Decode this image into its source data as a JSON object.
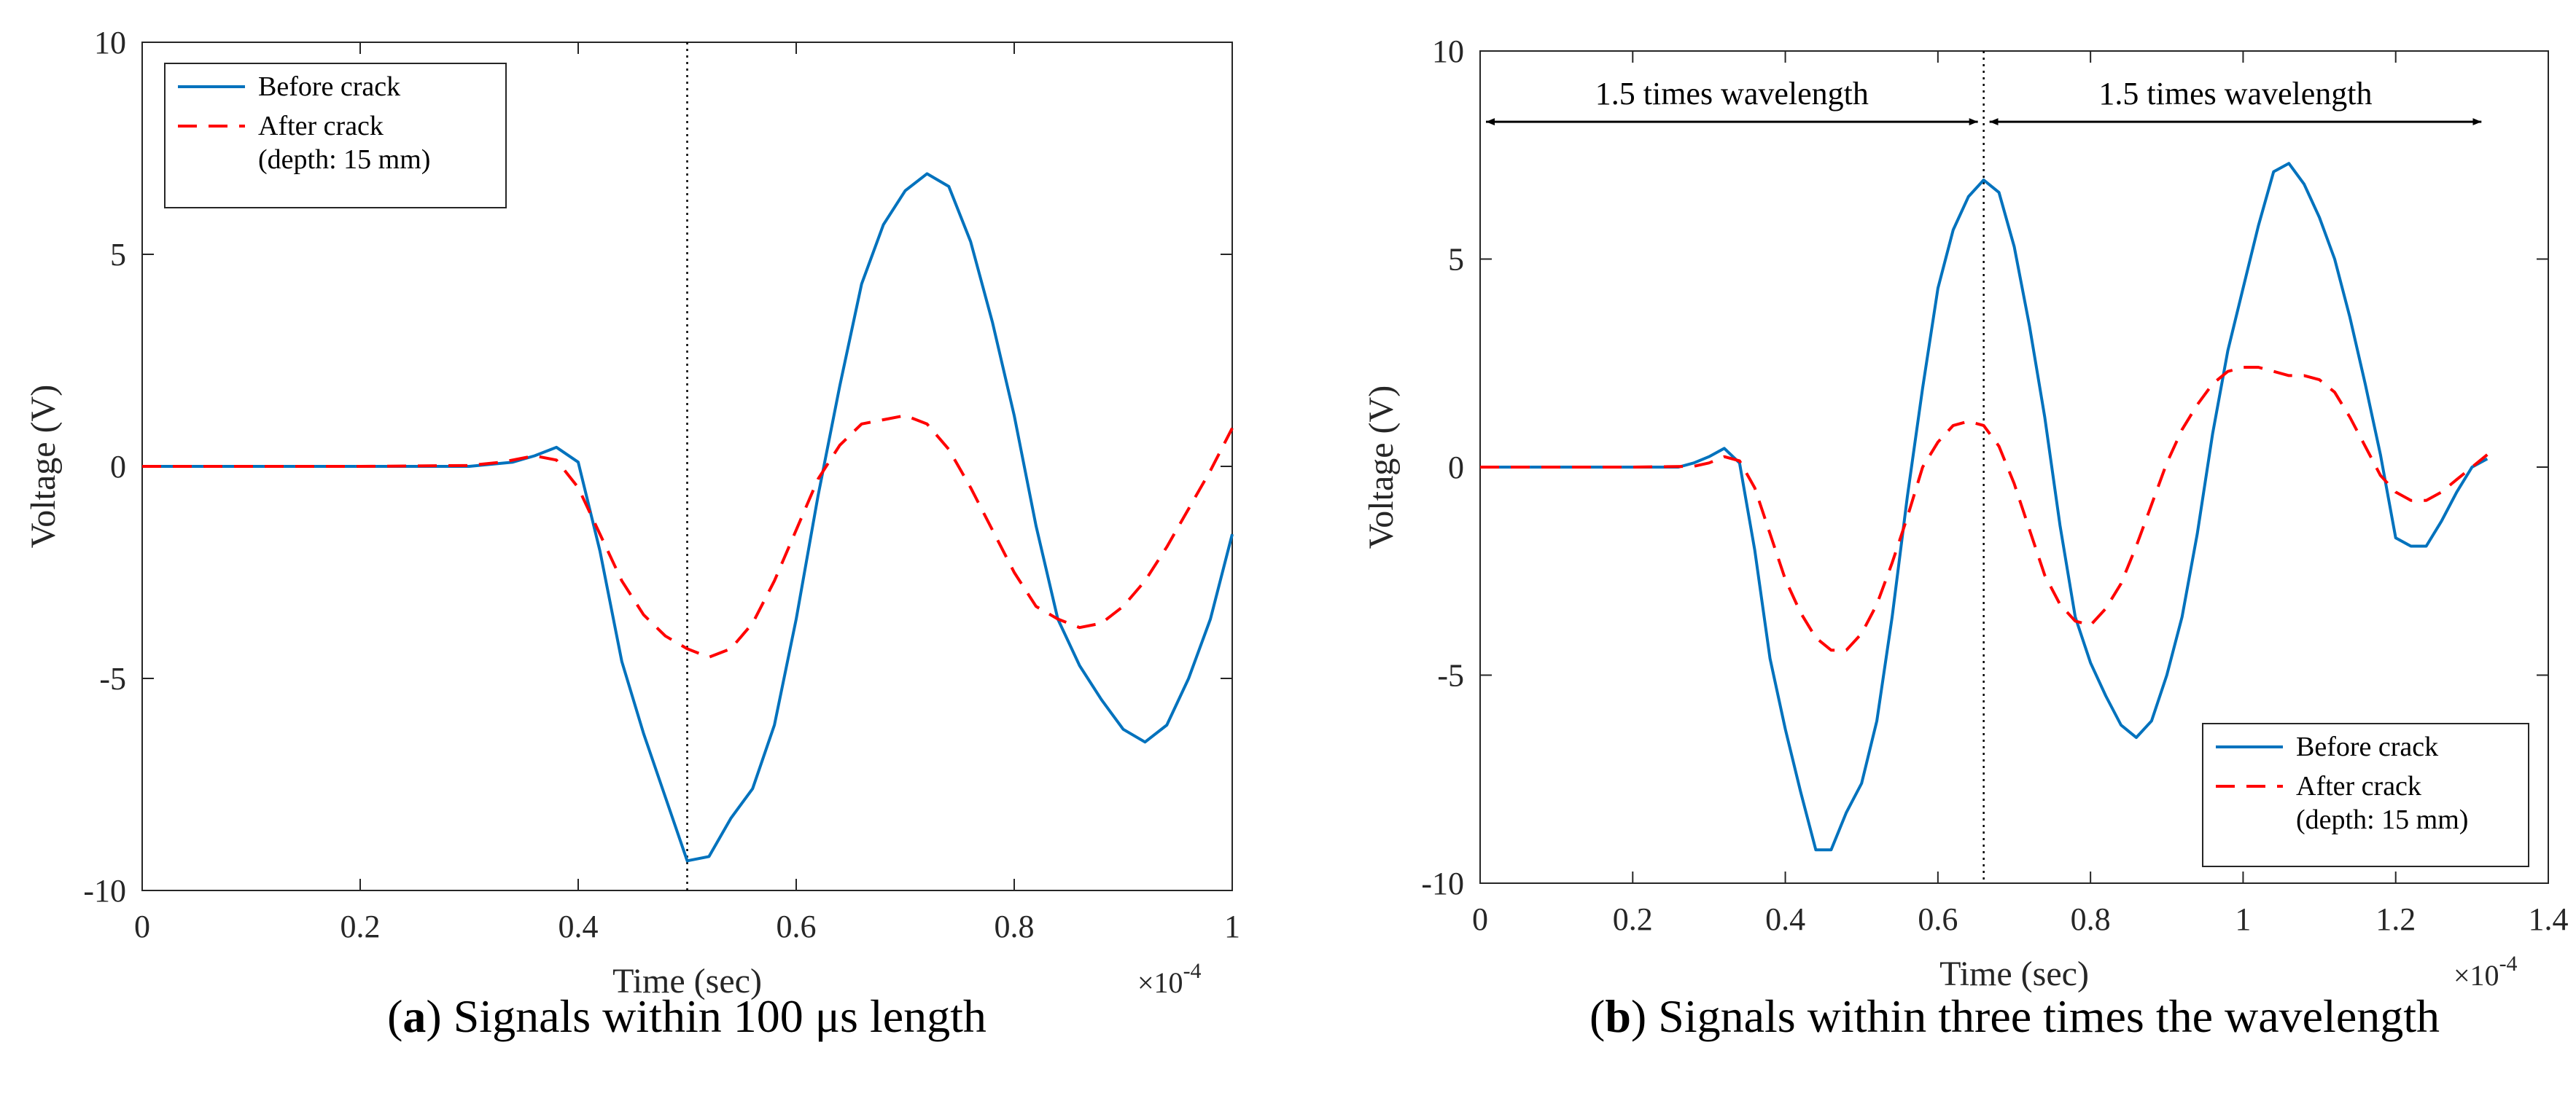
{
  "chart_data": [
    {
      "id": "a",
      "type": "line",
      "caption": {
        "letter": "a",
        "text": "Signals within 100 μs length"
      },
      "xlabel": "Time (sec)",
      "ylabel": "Voltage (V)",
      "x_exponent": "×10",
      "x_exponent_power": "-4",
      "xlim": [
        0,
        1.0
      ],
      "ylim": [
        -10,
        10
      ],
      "xticks": [
        0,
        0.2,
        0.4,
        0.6,
        0.8,
        1
      ],
      "xtick_labels": [
        "0",
        "0.2",
        "0.4",
        "0.6",
        "0.8",
        "1"
      ],
      "yticks": [
        -10,
        -5,
        0,
        5,
        10
      ],
      "ytick_labels": [
        "-10",
        "-5",
        "0",
        "5",
        "10"
      ],
      "grid": false,
      "legend_position": "top-left",
      "vlines": [
        0.5
      ],
      "arrows": [],
      "series": [
        {
          "name": "Before crack",
          "legend_lines": [
            "Before crack"
          ],
          "color": "#0072BD",
          "style": "solid",
          "x": [
            0,
            0.1,
            0.2,
            0.3,
            0.34,
            0.36,
            0.38,
            0.4,
            0.42,
            0.44,
            0.46,
            0.48,
            0.5,
            0.52,
            0.54,
            0.56,
            0.58,
            0.6,
            0.62,
            0.64,
            0.66,
            0.68,
            0.7,
            0.72,
            0.74,
            0.76,
            0.78,
            0.8,
            0.82,
            0.84,
            0.86,
            0.88,
            0.9,
            0.92,
            0.94,
            0.96,
            0.98,
            1.0
          ],
          "y": [
            0,
            0,
            0,
            0,
            0.1,
            0.25,
            0.45,
            0.1,
            -2.0,
            -4.6,
            -6.3,
            -7.8,
            -9.3,
            -9.2,
            -8.3,
            -7.6,
            -6.1,
            -3.6,
            -0.7,
            1.9,
            4.3,
            5.7,
            6.5,
            6.9,
            6.6,
            5.3,
            3.4,
            1.2,
            -1.4,
            -3.6,
            -4.7,
            -5.5,
            -6.2,
            -6.5,
            -6.1,
            -5.0,
            -3.6,
            -1.6
          ]
        },
        {
          "name": "After crack (depth: 15 mm)",
          "legend_lines": [
            "After crack",
            "(depth: 15 mm)"
          ],
          "color": "#FF0000",
          "style": "dashed",
          "x": [
            0,
            0.1,
            0.2,
            0.3,
            0.33,
            0.36,
            0.38,
            0.4,
            0.42,
            0.44,
            0.46,
            0.48,
            0.5,
            0.52,
            0.54,
            0.56,
            0.58,
            0.6,
            0.62,
            0.64,
            0.66,
            0.68,
            0.7,
            0.72,
            0.74,
            0.76,
            0.78,
            0.8,
            0.82,
            0.84,
            0.86,
            0.88,
            0.9,
            0.92,
            0.94,
            0.96,
            0.98,
            1.0
          ],
          "y": [
            0,
            0,
            0,
            0.02,
            0.1,
            0.25,
            0.15,
            -0.5,
            -1.6,
            -2.7,
            -3.5,
            -4.0,
            -4.3,
            -4.5,
            -4.3,
            -3.7,
            -2.7,
            -1.5,
            -0.3,
            0.5,
            1.0,
            1.1,
            1.2,
            1.0,
            0.4,
            -0.5,
            -1.5,
            -2.5,
            -3.3,
            -3.6,
            -3.8,
            -3.7,
            -3.3,
            -2.7,
            -1.9,
            -1.0,
            -0.1,
            0.9
          ]
        }
      ]
    },
    {
      "id": "b",
      "type": "line",
      "caption": {
        "letter": "b",
        "text": "Signals within three times the wavelength"
      },
      "xlabel": "Time (sec)",
      "ylabel": "Voltage (V)",
      "x_exponent": "×10",
      "x_exponent_power": "-4",
      "xlim": [
        0,
        1.4
      ],
      "ylim": [
        -10,
        10
      ],
      "xticks": [
        0,
        0.2,
        0.4,
        0.6,
        0.8,
        1.0,
        1.2,
        1.4
      ],
      "xtick_labels": [
        "0",
        "0.2",
        "0.4",
        "0.6",
        "0.8",
        "1",
        "1.2",
        "1.4"
      ],
      "yticks": [
        -10,
        -5,
        0,
        5,
        10
      ],
      "ytick_labels": [
        "-10",
        "-5",
        "0",
        "5",
        "10"
      ],
      "grid": false,
      "legend_position": "bottom-right",
      "vlines": [
        0.66
      ],
      "arrows": [
        {
          "label": "1.5 times wavelength",
          "x_from": 0,
          "x_to": 0.66,
          "y": 8.3
        },
        {
          "label": "1.5 times wavelength",
          "x_from": 0.66,
          "x_to": 1.32,
          "y": 8.3
        }
      ],
      "series": [
        {
          "name": "Before crack",
          "legend_lines": [
            "Before crack"
          ],
          "color": "#0072BD",
          "style": "solid",
          "x": [
            0,
            0.1,
            0.2,
            0.26,
            0.28,
            0.3,
            0.32,
            0.34,
            0.36,
            0.38,
            0.4,
            0.42,
            0.44,
            0.46,
            0.48,
            0.5,
            0.52,
            0.54,
            0.56,
            0.58,
            0.6,
            0.62,
            0.64,
            0.66,
            0.68,
            0.7,
            0.72,
            0.74,
            0.76,
            0.78,
            0.8,
            0.82,
            0.84,
            0.86,
            0.88,
            0.9,
            0.92,
            0.94,
            0.96,
            0.98,
            1.0,
            1.02,
            1.04,
            1.06,
            1.08,
            1.1,
            1.12,
            1.14,
            1.16,
            1.18,
            1.2,
            1.22,
            1.24,
            1.26,
            1.28,
            1.3,
            1.32
          ],
          "y": [
            0,
            0,
            0,
            0,
            0.1,
            0.25,
            0.45,
            0.1,
            -2.0,
            -4.6,
            -6.3,
            -7.8,
            -9.2,
            -9.2,
            -8.3,
            -7.6,
            -6.1,
            -3.6,
            -0.7,
            1.9,
            4.3,
            5.7,
            6.5,
            6.9,
            6.6,
            5.3,
            3.4,
            1.2,
            -1.4,
            -3.6,
            -4.7,
            -5.5,
            -6.2,
            -6.5,
            -6.1,
            -5.0,
            -3.6,
            -1.6,
            0.8,
            2.8,
            4.3,
            5.8,
            7.1,
            7.3,
            6.8,
            6.0,
            5.0,
            3.6,
            2.0,
            0.3,
            -1.7,
            -1.9,
            -1.9,
            -1.3,
            -0.6,
            0.0,
            0.2
          ]
        },
        {
          "name": "After crack (depth: 15 mm)",
          "legend_lines": [
            "After crack",
            "(depth: 15 mm)"
          ],
          "color": "#FF0000",
          "style": "dashed",
          "x": [
            0,
            0.1,
            0.2,
            0.28,
            0.3,
            0.32,
            0.34,
            0.36,
            0.38,
            0.4,
            0.42,
            0.44,
            0.46,
            0.48,
            0.5,
            0.52,
            0.54,
            0.56,
            0.58,
            0.6,
            0.62,
            0.64,
            0.66,
            0.68,
            0.7,
            0.72,
            0.74,
            0.76,
            0.78,
            0.8,
            0.82,
            0.84,
            0.86,
            0.88,
            0.9,
            0.92,
            0.94,
            0.96,
            0.98,
            1.0,
            1.02,
            1.04,
            1.06,
            1.08,
            1.1,
            1.12,
            1.14,
            1.16,
            1.18,
            1.2,
            1.22,
            1.24,
            1.26,
            1.28,
            1.3,
            1.32
          ],
          "y": [
            0,
            0,
            0,
            0.02,
            0.1,
            0.25,
            0.15,
            -0.5,
            -1.6,
            -2.7,
            -3.5,
            -4.1,
            -4.4,
            -4.4,
            -4.0,
            -3.3,
            -2.3,
            -1.2,
            0.0,
            0.6,
            1.0,
            1.1,
            1.0,
            0.5,
            -0.4,
            -1.5,
            -2.6,
            -3.3,
            -3.7,
            -3.8,
            -3.4,
            -2.8,
            -1.9,
            -0.9,
            0.1,
            0.9,
            1.5,
            2.0,
            2.3,
            2.4,
            2.4,
            2.3,
            2.2,
            2.2,
            2.1,
            1.8,
            1.2,
            0.5,
            -0.2,
            -0.6,
            -0.8,
            -0.8,
            -0.6,
            -0.3,
            0.0,
            0.3
          ]
        }
      ]
    }
  ]
}
